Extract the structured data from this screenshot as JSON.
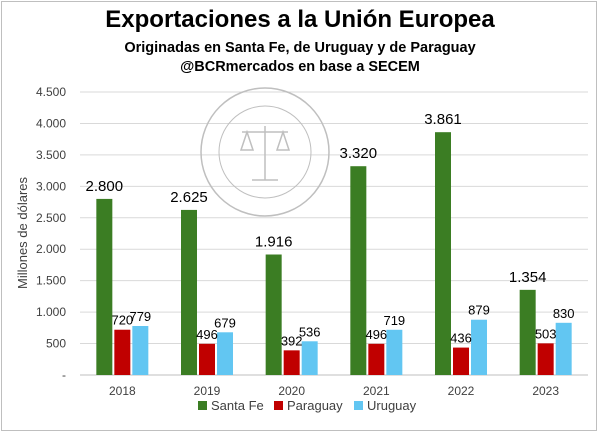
{
  "chart_data": {
    "type": "bar",
    "title": "Exportaciones a la Unión Europea",
    "subtitle": "Originadas en Santa Fe, de Uruguay y de Paraguay",
    "source": "@BCRmercados en base a SECEM",
    "watermark": "BOLSA DE COMERCIO DE ROSARIO",
    "ylabel": "Millones de dólares",
    "xlabel": "",
    "categories": [
      "2018",
      "2019",
      "2020",
      "2021",
      "2022",
      "2023"
    ],
    "ylim": [
      0,
      4500
    ],
    "yticks": [
      0,
      500,
      1000,
      1500,
      2000,
      2500,
      3000,
      3500,
      4000,
      4500
    ],
    "yticklabels": [
      "-",
      "500",
      "1.000",
      "1.500",
      "2.000",
      "2.500",
      "3.000",
      "3.500",
      "4.000",
      "4.500"
    ],
    "grid": true,
    "legend_position": "bottom",
    "series": [
      {
        "name": "Santa Fe",
        "color": "#3b7d23",
        "values": [
          2800,
          2625,
          1916,
          3320,
          3861,
          1354
        ],
        "labels": [
          "2.800",
          "2.625",
          "1.916",
          "3.320",
          "3.861",
          "1.354"
        ]
      },
      {
        "name": "Paraguay",
        "color": "#c00000",
        "values": [
          720,
          496,
          392,
          496,
          436,
          503
        ],
        "labels": [
          "720",
          "496",
          "392",
          "496",
          "436",
          "503"
        ]
      },
      {
        "name": "Uruguay",
        "color": "#62c6f2",
        "values": [
          779,
          679,
          536,
          719,
          879,
          830
        ],
        "labels": [
          "779",
          "679",
          "536",
          "719",
          "879",
          "830"
        ]
      }
    ]
  }
}
